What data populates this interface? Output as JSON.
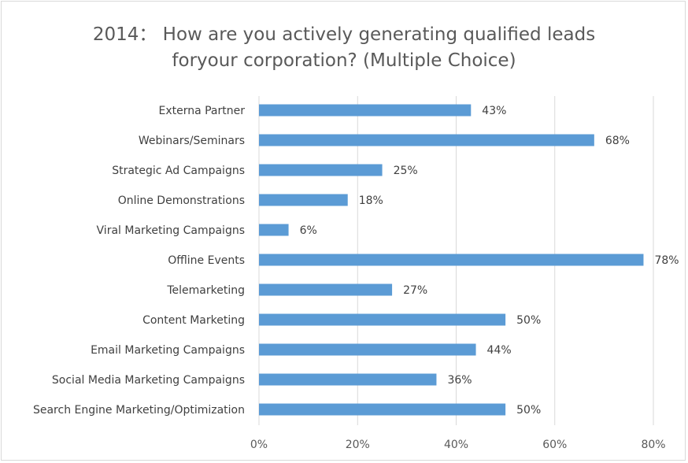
{
  "chart_data": {
    "type": "bar",
    "orientation": "horizontal",
    "title_line1": "2014：  How are you actively generating qualified leads",
    "title_line2": "foryour corporation? (Multiple Choice)",
    "categories": [
      "Externa Partner",
      "Webinars/Seminars",
      "Strategic Ad Campaigns",
      "Online Demonstrations",
      "Viral Marketing Campaigns",
      "Offline Events",
      "Telemarketing",
      "Content Marketing",
      "Email Marketing Campaigns",
      "Social Media Marketing Campaigns",
      "Search Engine Marketing/Optimization"
    ],
    "values": [
      43,
      68,
      25,
      18,
      6,
      78,
      27,
      50,
      44,
      36,
      50
    ],
    "value_labels": [
      "43%",
      "68%",
      "25%",
      "18%",
      "6%",
      "78%",
      "27%",
      "50%",
      "44%",
      "36%",
      "50%"
    ],
    "xlim": [
      0,
      80
    ],
    "x_ticks": [
      0,
      20,
      40,
      60,
      80
    ],
    "x_tick_labels": [
      "0%",
      "20%",
      "40%",
      "60%",
      "80%"
    ],
    "grid": true,
    "bar_color": "#5b9bd5",
    "gridline_color": "#d9d9d9",
    "legend": "none"
  }
}
